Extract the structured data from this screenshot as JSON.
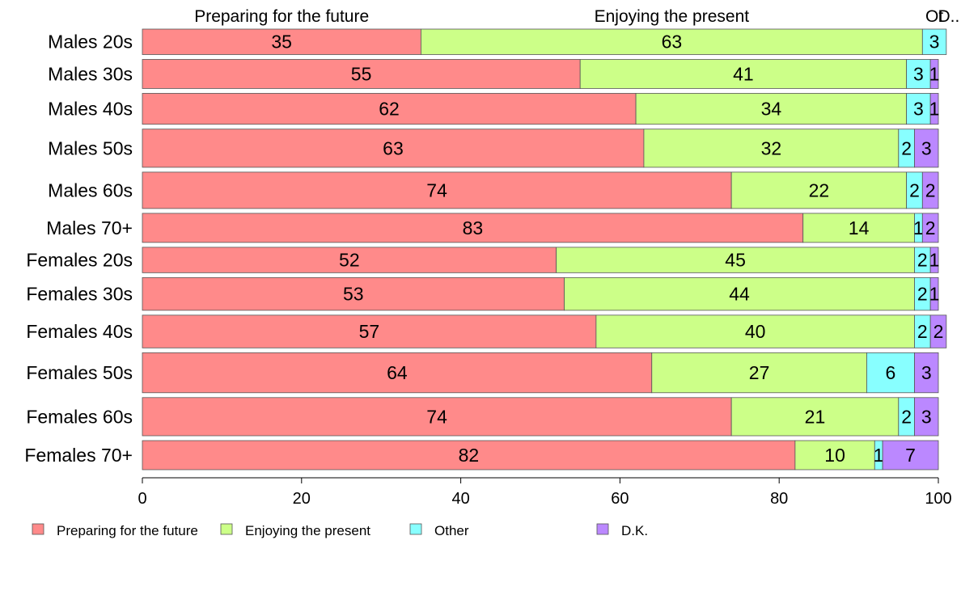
{
  "chart_data": {
    "type": "bar",
    "orientation": "horizontal",
    "stacked": true,
    "title": "",
    "xlabel": "",
    "ylabel": "",
    "xlim": [
      0,
      100
    ],
    "x_ticks": [
      "0",
      "20",
      "40",
      "60",
      "80",
      "100"
    ],
    "top_labels": [
      "Preparing for the future",
      "Enjoying the present",
      "Ot",
      "D..."
    ],
    "legend_position": "bottom",
    "categories": [
      "Males 20s",
      "Males 30s",
      "Males 40s",
      "Males 50s",
      "Males 60s",
      "Males 70+",
      "Females 20s",
      "Females 30s",
      "Females 40s",
      "Females 50s",
      "Females 60s",
      "Females 70+"
    ],
    "bar_weights": [
      28,
      32,
      34,
      42,
      40,
      32,
      28,
      36,
      36,
      44,
      42,
      32
    ],
    "series": [
      {
        "name": "Preparing for the future",
        "color": "#ff8a8a",
        "values": [
          35,
          55,
          62,
          63,
          74,
          83,
          52,
          53,
          57,
          64,
          74,
          82
        ]
      },
      {
        "name": "Enjoying the present",
        "color": "#ccff88",
        "values": [
          63,
          41,
          34,
          32,
          22,
          14,
          45,
          44,
          40,
          27,
          21,
          10
        ]
      },
      {
        "name": "Other",
        "color": "#88ffff",
        "values": [
          3,
          3,
          3,
          2,
          2,
          1,
          2,
          2,
          2,
          6,
          2,
          1
        ]
      },
      {
        "name": "D.K.",
        "color": "#bb88ff",
        "values": [
          0,
          1,
          1,
          3,
          2,
          2,
          1,
          1,
          2,
          3,
          3,
          7
        ]
      }
    ]
  }
}
